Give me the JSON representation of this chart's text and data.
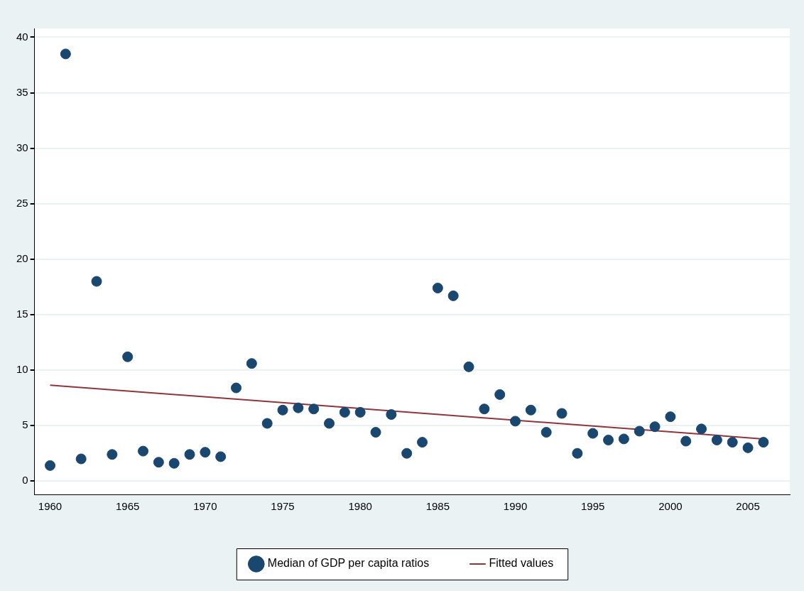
{
  "chart_data": {
    "type": "scatter",
    "xlim": [
      1959,
      2007.7
    ],
    "ylim": [
      -1.2,
      40.8
    ],
    "xticks": [
      1960,
      1965,
      1970,
      1975,
      1980,
      1985,
      1990,
      1995,
      2000,
      2005
    ],
    "yticks": [
      0,
      5,
      10,
      15,
      20,
      25,
      30,
      35,
      40
    ],
    "grid": "y",
    "legend": "bottom",
    "series": [
      {
        "name": "Median of GDP per capita ratios",
        "marker": "circle",
        "color": "#1a476f",
        "x": [
          1960,
          1961,
          1962,
          1963,
          1964,
          1965,
          1966,
          1967,
          1968,
          1969,
          1970,
          1971,
          1972,
          1973,
          1974,
          1975,
          1976,
          1977,
          1978,
          1979,
          1980,
          1981,
          1982,
          1983,
          1984,
          1985,
          1986,
          1987,
          1988,
          1989,
          1990,
          1991,
          1992,
          1993,
          1994,
          1995,
          1996,
          1997,
          1998,
          1999,
          2000,
          2001,
          2002,
          2003,
          2004,
          2005,
          2006
        ],
        "values": [
          1.4,
          38.5,
          2.0,
          18.0,
          2.4,
          11.2,
          2.7,
          1.7,
          1.6,
          2.4,
          2.6,
          2.2,
          8.4,
          10.6,
          5.2,
          6.4,
          6.6,
          6.5,
          5.2,
          6.2,
          6.2,
          4.4,
          6.0,
          2.5,
          3.5,
          17.4,
          16.7,
          10.3,
          6.5,
          7.8,
          5.4,
          6.4,
          4.4,
          6.1,
          2.5,
          4.3,
          3.7,
          3.8,
          4.5,
          4.9,
          5.8,
          3.6,
          4.7,
          3.7,
          3.5,
          3.0,
          3.5
        ]
      },
      {
        "name": "Fitted values",
        "type": "line",
        "marker": "none",
        "color": "#90353b",
        "x": [
          1960,
          2006
        ],
        "values": [
          8.65,
          3.8
        ]
      }
    ]
  }
}
